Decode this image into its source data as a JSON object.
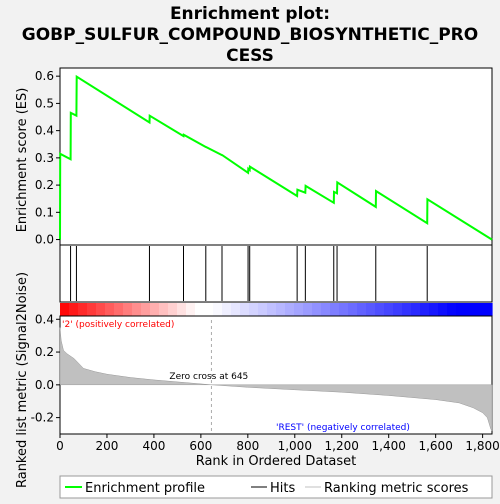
{
  "chart_data": {
    "type": "line",
    "title_lines": [
      "Enrichment plot:",
      "GOBP_SULFUR_COMPOUND_BIOSYNTHETIC_PRO",
      "CESS"
    ],
    "top_panel": {
      "ylabel": "Enrichment score (ES)",
      "xlim": [
        0,
        1840
      ],
      "ylim": [
        -0.02,
        0.63
      ],
      "yticks": [
        "0.0",
        "0.1",
        "0.2",
        "0.3",
        "0.4",
        "0.5",
        "0.6"
      ],
      "enrichment_profile": {
        "x": [
          0,
          1,
          45,
          46,
          70,
          71,
          381,
          382,
          526,
          527,
          621,
          622,
          690,
          691,
          801,
          802,
          808,
          809,
          1010,
          1011,
          1045,
          1046,
          1166,
          1167,
          1180,
          1181,
          1345,
          1346,
          1564,
          1565,
          1840
        ],
        "y": [
          0.0,
          0.315,
          0.295,
          0.465,
          0.455,
          0.598,
          0.43,
          0.455,
          0.38,
          0.385,
          0.34,
          0.34,
          0.31,
          0.31,
          0.245,
          0.26,
          0.255,
          0.268,
          0.16,
          0.183,
          0.172,
          0.197,
          0.135,
          0.175,
          0.17,
          0.21,
          0.12,
          0.178,
          0.06,
          0.148,
          0.0
        ]
      },
      "hits": [
        45,
        70,
        381,
        526,
        621,
        690,
        801,
        808,
        1010,
        1045,
        1166,
        1180,
        1345,
        1564
      ]
    },
    "bottom_panel": {
      "xlabel": "Rank in Ordered Dataset",
      "ylabel": "Ranked list metric (Signal2Noise)",
      "xlim": [
        0,
        1840
      ],
      "ylim": [
        -0.3,
        0.42
      ],
      "yticks": [
        "-0.2",
        "0.0",
        "0.2",
        "0.4"
      ],
      "xticks": [
        "0",
        "200",
        "400",
        "600",
        "800",
        "1,000",
        "1,200",
        "1,400",
        "1,600",
        "1,800"
      ],
      "metric_curve": {
        "x": [
          0,
          5,
          15,
          30,
          60,
          100,
          150,
          200,
          300,
          400,
          500,
          645,
          800,
          1000,
          1200,
          1400,
          1600,
          1700,
          1760,
          1800,
          1820,
          1835,
          1840
        ],
        "y": [
          0.35,
          0.27,
          0.21,
          0.19,
          0.16,
          0.1,
          0.08,
          0.065,
          0.045,
          0.03,
          0.018,
          0.0,
          -0.015,
          -0.03,
          -0.045,
          -0.065,
          -0.09,
          -0.11,
          -0.14,
          -0.17,
          -0.2,
          -0.27,
          -0.28
        ]
      },
      "zero_cross_label": "Zero cross at 645",
      "zero_cross_rank": 645,
      "positive_label": "'2' (positively correlated)",
      "negative_label": "'REST' (negatively correlated)"
    },
    "legend": {
      "placement": "bottom",
      "items": [
        "Enrichment profile",
        "Hits",
        "Ranking metric scores"
      ]
    },
    "colors": {
      "profile": "#00ff00",
      "hits": "#000000",
      "metric_fill": "#c0c0c0",
      "positive": "#ff0000",
      "negative": "#0000ff",
      "zero_line": "#aaaaaa"
    }
  }
}
